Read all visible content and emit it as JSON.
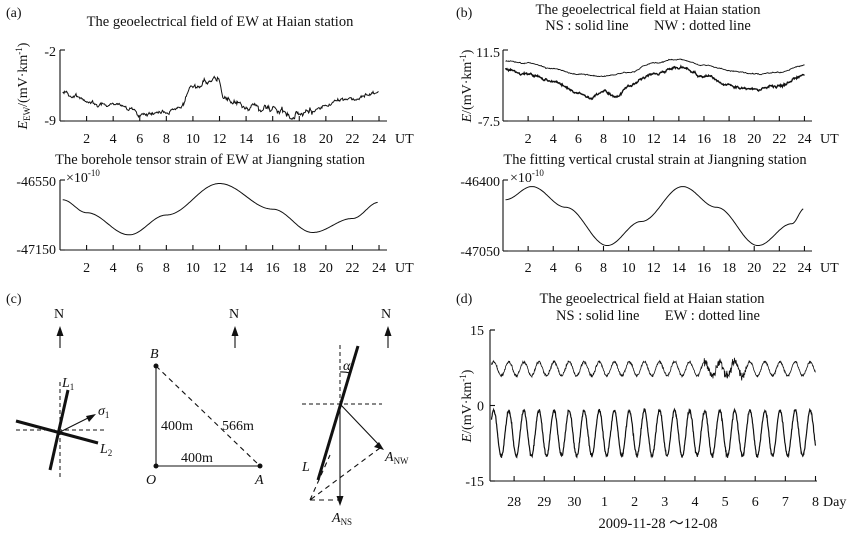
{
  "panels": {
    "a": {
      "letter": "(a)",
      "title": "The geoelectrical field of EW at Haian station"
    },
    "a2": {
      "title": "The borehole tensor strain of EW at Jiangning station"
    },
    "b": {
      "letter": "(b)",
      "title": "The geoelectrical field at Haian station",
      "subtitle": "NS : solid line       NW : dotted line"
    },
    "b2": {
      "title": "The fitting vertical crustal strain at Jiangning station"
    },
    "c": {
      "letter": "(c)"
    },
    "d": {
      "letter": "(d)",
      "title": "The geoelectrical field at Haian station",
      "subtitle": "NS : solid line       EW : dotted line",
      "date_range": "2009-11-28 ～12-08"
    }
  },
  "diagram": {
    "north": "N",
    "fig1": {
      "L1": "L",
      "L1_sub": "1",
      "L2": "L",
      "L2_sub": "2",
      "sigma": "σ",
      "sigma_sub": "1"
    },
    "fig2": {
      "B": "B",
      "O": "O",
      "A": "A",
      "side_vertical": "400m",
      "side_horizontal": "400m",
      "diagonal": "566m"
    },
    "fig3": {
      "alpha": "α",
      "L": "L",
      "ANW": "A",
      "ANW_sub": "NW",
      "ANS": "A",
      "ANS_sub": "NS"
    }
  },
  "chart_data": [
    {
      "id": "a-top",
      "type": "line",
      "title": "The geoelectrical field of EW at Haian station",
      "xlabel": "UT",
      "ylabel": "E",
      "ylabel_sub": "EW",
      "ylabel_unit": "/(mV·km",
      "xlim": [
        0,
        24.6
      ],
      "ylim": [
        -9,
        -2
      ],
      "xticks": [
        2,
        4,
        6,
        8,
        10,
        12,
        14,
        16,
        18,
        20,
        22,
        24
      ],
      "ytick_labels": [
        "-2",
        "-9"
      ],
      "series": [
        {
          "x": [
            0.2,
            1,
            2,
            3,
            4,
            5,
            6,
            7,
            8,
            9,
            10,
            11,
            11.7,
            12.5,
            13,
            14,
            15,
            16,
            17,
            18,
            19,
            20,
            21,
            22,
            23,
            24
          ],
          "y": [
            -6.2,
            -6.5,
            -6.8,
            -7.4,
            -7.2,
            -7.6,
            -8.2,
            -8.0,
            -7.9,
            -7.6,
            -5.6,
            -5.2,
            -4.7,
            -6.5,
            -7.2,
            -7.8,
            -8.1,
            -7.9,
            -8.2,
            -8.3,
            -7.8,
            -7.4,
            -7.0,
            -6.8,
            -6.4,
            -6.1
          ]
        }
      ]
    },
    {
      "id": "a-bottom",
      "type": "line",
      "title": "The borehole tensor strain of EW at Jiangning station",
      "xlabel": "UT",
      "exponent": "-10",
      "xlim": [
        0,
        24.6
      ],
      "ylim": [
        -47150,
        -46550
      ],
      "xticks": [
        2,
        4,
        6,
        8,
        10,
        12,
        14,
        16,
        18,
        20,
        22,
        24
      ],
      "ytick_labels": [
        "-46550",
        "-47150"
      ],
      "series": [
        {
          "x": [
            0.2,
            2,
            5.2,
            8,
            12,
            16,
            19,
            22,
            24
          ],
          "y": [
            -46720,
            -46830,
            -47020,
            -46850,
            -46580,
            -46800,
            -47000,
            -46880,
            -46740
          ]
        }
      ]
    },
    {
      "id": "b-top",
      "type": "line",
      "title": "The geoelectrical field at Haian station",
      "xlabel": "UT",
      "ylabel": "E",
      "ylabel_unit": "/(mV·km",
      "xlim": [
        0,
        24.6
      ],
      "ylim": [
        -7.5,
        11.5
      ],
      "xticks": [
        2,
        4,
        6,
        8,
        10,
        12,
        14,
        16,
        18,
        20,
        22,
        24
      ],
      "ytick_labels": [
        "11.5",
        "-7.5"
      ],
      "series": [
        {
          "name": "NS",
          "x": [
            0.2,
            2,
            4,
            6,
            7,
            8,
            9,
            10,
            12,
            14,
            16,
            18,
            20,
            22,
            24
          ],
          "y": [
            6.5,
            5.0,
            3.0,
            0.0,
            -1.5,
            0.5,
            -1.0,
            2.0,
            5.0,
            7.0,
            4.5,
            2.0,
            1.0,
            2.0,
            5.0
          ]
        },
        {
          "name": "NW",
          "x": [
            0.2,
            2,
            4,
            6,
            8,
            10,
            12,
            14,
            16,
            18,
            20,
            22,
            24
          ],
          "y": [
            8.5,
            8.0,
            6.5,
            5.0,
            4.5,
            5.5,
            8.0,
            9.0,
            7.5,
            6.0,
            5.0,
            5.5,
            7.5
          ]
        }
      ]
    },
    {
      "id": "b-bottom",
      "type": "line",
      "title": "The fitting vertical crustal strain at Jiangning station",
      "xlabel": "UT",
      "exponent": "-10",
      "xlim": [
        0,
        24.6
      ],
      "ylim": [
        -47050,
        -46400
      ],
      "xticks": [
        2,
        4,
        6,
        8,
        10,
        12,
        14,
        16,
        18,
        20,
        22,
        24
      ],
      "ytick_labels": [
        "-46400",
        "-47050"
      ],
      "series": [
        {
          "x": [
            0.2,
            2.3,
            5,
            8.3,
            11,
            14.3,
            17,
            20.3,
            23,
            24
          ],
          "y": [
            -46580,
            -46460,
            -46650,
            -47000,
            -46780,
            -46460,
            -46650,
            -47000,
            -46800,
            -46660
          ]
        }
      ]
    },
    {
      "id": "d",
      "type": "line",
      "title": "The geoelectrical field at Haian station",
      "xlabel": "Day",
      "ylabel": "E",
      "ylabel_unit": "/(mV·km",
      "xlim": [
        27.2,
        38.05
      ],
      "ylim": [
        -15,
        15
      ],
      "xticks": [
        28,
        29,
        30,
        31,
        32,
        33,
        34,
        35,
        36,
        37,
        38
      ],
      "xtick_labels": [
        "28",
        "29",
        "30",
        "1",
        "2",
        "3",
        "4",
        "5",
        "6",
        "7",
        "8"
      ],
      "yticks": [
        15,
        0,
        -15
      ],
      "ytick_labels": [
        "15",
        "0",
        "-15"
      ],
      "series": [
        {
          "name": "NS",
          "mean": -5.5,
          "amplitude": 4.5,
          "period_days": 0.5
        },
        {
          "name": "EW",
          "mean": 7.3,
          "amplitude": 1.4,
          "period_days": 0.5
        }
      ]
    }
  ]
}
